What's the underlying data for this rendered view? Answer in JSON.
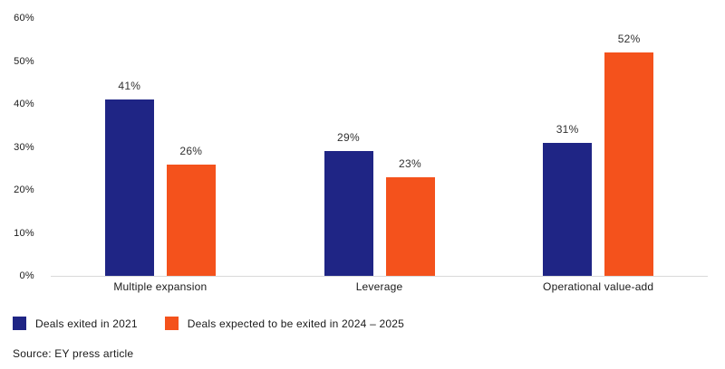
{
  "colors": {
    "navy": "#1f2585",
    "orange": "#f4521c",
    "axis_line": "#d9d9d9",
    "text": "#1a1a1a"
  },
  "chart_data": {
    "type": "bar",
    "categories": [
      "Multiple expansion",
      "Leverage",
      "Operational value-add"
    ],
    "series": [
      {
        "name": "Deals exited in 2021",
        "color": "#1f2585",
        "values": [
          41,
          29,
          31
        ]
      },
      {
        "name": "Deals expected to be exited in 2024 – 2025",
        "color": "#f4521c",
        "values": [
          26,
          23,
          52
        ]
      }
    ],
    "value_suffix": "%",
    "ylim": [
      0,
      60
    ],
    "ytick_step": 10,
    "ytick_labels": [
      "0%",
      "10%",
      "20%",
      "30%",
      "40%",
      "50%",
      "60%"
    ],
    "grid": false,
    "data_labels": true,
    "legend_position": "bottom-left",
    "title": "",
    "xlabel": "",
    "ylabel": ""
  },
  "source": "Source: EY press article"
}
